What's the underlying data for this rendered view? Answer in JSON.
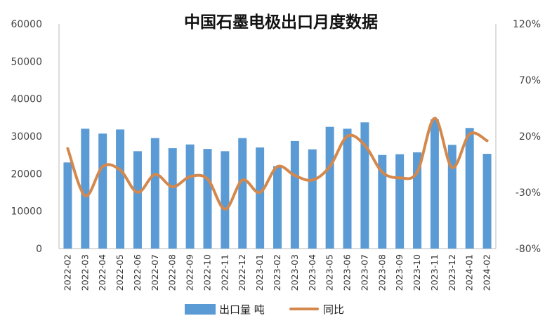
{
  "chart_data": {
    "type": "bar",
    "title": "中国石墨电极出口月度数据",
    "categories": [
      "2022-02",
      "2022-03",
      "2022-04",
      "2022-05",
      "2022-06",
      "2022-07",
      "2022-08",
      "2022-09",
      "2022-10",
      "2022-11",
      "2022-12",
      "2023-01",
      "2023-02",
      "2023-03",
      "2023-04",
      "2023-05",
      "2023-06",
      "2023-07",
      "2023-08",
      "2023-09",
      "2023-10",
      "2023-11",
      "2023-12",
      "2024-01",
      "2024-02"
    ],
    "series": [
      {
        "name": "出口量 吨",
        "type": "bar",
        "axis": "left",
        "color": "#5b9bd5",
        "values": [
          23000,
          32000,
          30700,
          31800,
          26000,
          29500,
          26800,
          27800,
          26600,
          26000,
          29500,
          27000,
          22000,
          28700,
          26500,
          32500,
          32000,
          33700,
          25000,
          25200,
          25700,
          34500,
          27700,
          32200,
          25300
        ]
      },
      {
        "name": "同比",
        "type": "line",
        "axis": "right",
        "color": "#d4884c",
        "values": [
          0.09,
          -0.33,
          -0.07,
          -0.1,
          -0.3,
          -0.14,
          -0.25,
          -0.16,
          -0.18,
          -0.45,
          -0.19,
          -0.3,
          -0.07,
          -0.15,
          -0.19,
          -0.07,
          0.2,
          0.12,
          -0.12,
          -0.17,
          -0.12,
          0.36,
          -0.08,
          0.22,
          0.16
        ]
      }
    ],
    "y_left": {
      "min": 0,
      "max": 60000,
      "step": 10000,
      "tick_labels": [
        "0",
        "10000",
        "20000",
        "30000",
        "40000",
        "50000",
        "60000"
      ]
    },
    "y_right": {
      "min": -0.8,
      "max": 1.2,
      "step": 0.5,
      "tick_labels": [
        "-80%",
        "-30%",
        "20%",
        "70%",
        "120%"
      ]
    },
    "grid": false,
    "legend_position": "bottom"
  }
}
